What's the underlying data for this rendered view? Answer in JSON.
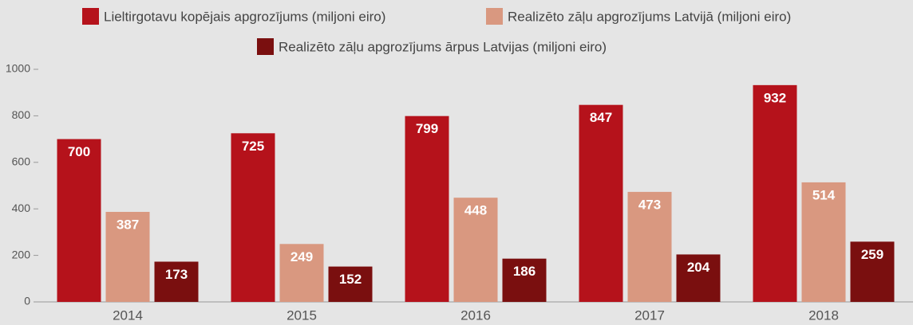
{
  "chart_data": {
    "type": "bar",
    "categories": [
      "2014",
      "2015",
      "2016",
      "2017",
      "2018"
    ],
    "series": [
      {
        "name": "Lieltirgotavu kopējais apgrozījums (miljoni eiro)",
        "color": "#b5121b",
        "values": [
          700,
          725,
          799,
          847,
          932
        ]
      },
      {
        "name": "Realizēto zāļu apgrozījums Latvijā (miljoni eiro)",
        "color": "#d99880",
        "values": [
          387,
          249,
          448,
          473,
          514
        ]
      },
      {
        "name": "Realizēto zāļu apgrozījums ārpus Latvijas (miljoni eiro)",
        "color": "#7a0f0f",
        "values": [
          173,
          152,
          186,
          204,
          259
        ]
      }
    ],
    "ylim": [
      0,
      1000
    ],
    "yticks": [
      0,
      200,
      400,
      600,
      800,
      1000
    ],
    "grid": false,
    "legend": "top"
  }
}
